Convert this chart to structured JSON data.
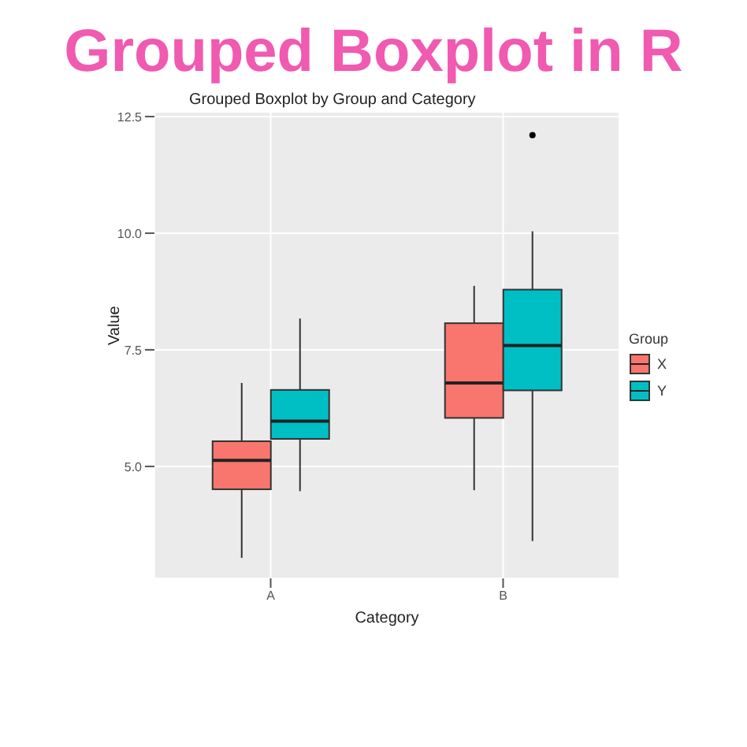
{
  "chart_data": {
    "type": "box",
    "title": "Grouped Boxplot in R",
    "subtitle": "Grouped Boxplot by Group and Category",
    "xlabel": "Category",
    "ylabel": "Value",
    "legend_title": "Group",
    "categories": [
      "A",
      "B"
    ],
    "series": [
      {
        "name": "X",
        "color": "#f8766d",
        "boxes": [
          {
            "low": 3.04,
            "q1": 4.51,
            "median": 5.13,
            "q3": 5.54,
            "high": 6.79
          },
          {
            "low": 4.49,
            "q1": 6.04,
            "median": 6.79,
            "q3": 8.07,
            "high": 8.87
          }
        ]
      },
      {
        "name": "Y",
        "color": "#00bfc4",
        "boxes": [
          {
            "low": 4.47,
            "q1": 5.59,
            "median": 5.97,
            "q3": 6.64,
            "high": 8.17
          },
          {
            "low": 3.4,
            "q1": 6.63,
            "median": 7.59,
            "q3": 8.79,
            "high": 10.04,
            "outliers": [
              12.1
            ]
          }
        ]
      }
    ],
    "ylim": [
      2.6,
      12.6
    ],
    "yticks": [
      {
        "value": 5,
        "label": "5.0"
      },
      {
        "value": 7.5,
        "label": "7.5"
      },
      {
        "value": 10,
        "label": "10.0"
      },
      {
        "value": 12.5,
        "label": "12.5"
      }
    ],
    "grid": true,
    "legend": "right"
  }
}
